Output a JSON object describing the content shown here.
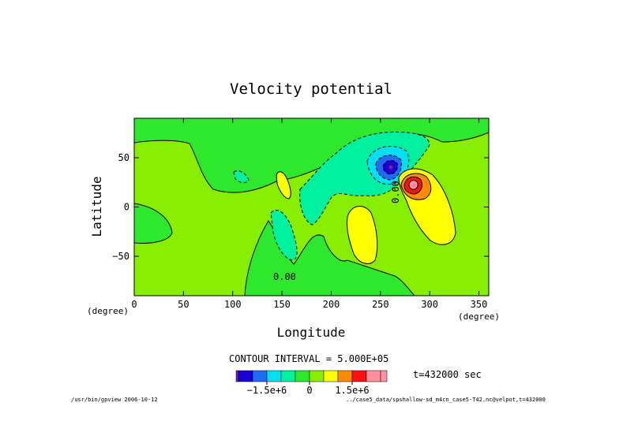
{
  "chart_data": {
    "type": "contour",
    "title": "Velocity potential",
    "xlabel": "Longitude",
    "ylabel": "Latitude",
    "xunit": "(degree)",
    "yunit": "(degree)",
    "xlim": [
      0,
      360
    ],
    "ylim": [
      -90,
      90
    ],
    "x_ticks": [
      "0",
      "50",
      "100",
      "150",
      "200",
      "250",
      "300",
      "350"
    ],
    "x_tick_values": [
      0,
      50,
      100,
      150,
      200,
      250,
      300,
      350
    ],
    "y_ticks": [
      "50",
      "0",
      "−50"
    ],
    "y_tick_values": [
      50,
      0,
      -50
    ],
    "contour_labels": [
      {
        "text": "0.00",
        "lon": 140,
        "lat": -70
      },
      {
        "text": "0.00",
        "lon": 262,
        "lat": 5
      }
    ],
    "extrema": [
      {
        "kind": "min",
        "lon": 258,
        "lat": 38
      },
      {
        "kind": "max",
        "lon": 283,
        "lat": 22
      }
    ],
    "contour_interval_text": "CONTOUR INTERVAL = 5.000E+05",
    "contour_interval": 500000,
    "time_text": "t=432000 sec",
    "colorbar": {
      "colors": [
        "#1a00d6",
        "#1f6cf2",
        "#00e0f0",
        "#00f0a0",
        "#2ee82e",
        "#88ee00",
        "#ffff00",
        "#ff8c00",
        "#ff1010",
        "#ff90a0"
      ],
      "end_marks": [
        "#7a1bbf",
        "#ff90a0"
      ],
      "ticks": [
        "−1.5e+6",
        "0",
        "1.5e+6"
      ],
      "tick_values": [
        -1500000,
        0,
        1500000
      ]
    },
    "footer_left": "/usr/bin/gpview  2006-10-12",
    "footer_right": "../case5_data/spshallow-sd_m4cn_case5-T42.nc@velpot,t=432000"
  }
}
